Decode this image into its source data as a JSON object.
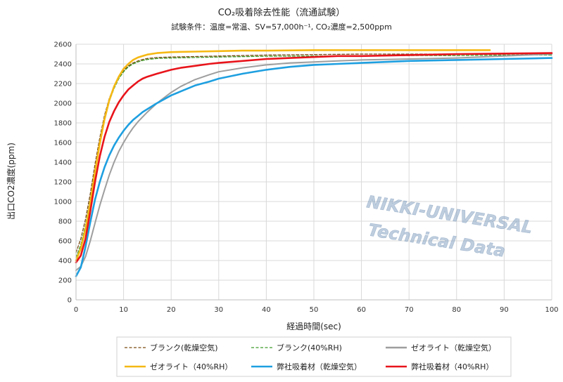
{
  "chart_data": {
    "type": "line",
    "title": "CO₂吸着除去性能（流通試験）",
    "subtitle": "試験条件：温度=常温、SV=57,000h⁻¹, CO₂濃度=2,500ppm",
    "xlabel": "経過時間(sec)",
    "ylabel": "出口CO2濃度(ppm)",
    "xlim": [
      0,
      100
    ],
    "ylim": [
      0,
      2600
    ],
    "x_ticks": [
      "0",
      "10",
      "20",
      "30",
      "40",
      "50",
      "60",
      "70",
      "80",
      "90",
      "100"
    ],
    "y_ticks": [
      "0",
      "200",
      "400",
      "600",
      "800",
      "1000",
      "1200",
      "1400",
      "1600",
      "1800",
      "2000",
      "2200",
      "2400",
      "2600"
    ],
    "grid": true,
    "legend_position": "bottom",
    "watermark": [
      "NIKKI-UNIVERSAL",
      "Technical Data"
    ],
    "series": [
      {
        "name": "ブランク(乾燥空気)",
        "color": "#7a4a12",
        "style": "dashed",
        "x": [
          0,
          1,
          2,
          3,
          4,
          5,
          6,
          7,
          8,
          9,
          10,
          11,
          12,
          13,
          14,
          15,
          17,
          20,
          25,
          30,
          40,
          50,
          60,
          70,
          80,
          90,
          100
        ],
        "y": [
          480,
          620,
          820,
          1080,
          1380,
          1650,
          1880,
          2050,
          2170,
          2260,
          2330,
          2380,
          2410,
          2430,
          2445,
          2455,
          2465,
          2470,
          2475,
          2480,
          2490,
          2495,
          2500,
          2500,
          2500,
          2500,
          2500
        ]
      },
      {
        "name": "ブランク(40%RH)",
        "color": "#3f9a2a",
        "style": "dashed",
        "x": [
          0,
          1,
          2,
          3,
          4,
          5,
          6,
          7,
          8,
          9,
          10,
          11,
          12,
          13,
          14,
          15,
          17,
          20,
          25,
          30,
          40,
          50,
          60,
          70,
          80,
          90,
          100
        ],
        "y": [
          430,
          560,
          760,
          1020,
          1320,
          1600,
          1840,
          2020,
          2150,
          2250,
          2320,
          2370,
          2400,
          2420,
          2435,
          2445,
          2455,
          2460,
          2465,
          2470,
          2478,
          2480,
          2480,
          2485,
          2485,
          2490,
          2490
        ]
      },
      {
        "name": "ゼオライト（乾燥空気）",
        "color": "#9e9e9e",
        "style": "solid",
        "x": [
          0,
          1,
          2,
          3,
          4,
          5,
          6,
          7,
          8,
          9,
          10,
          11,
          12,
          13,
          14,
          15,
          17,
          20,
          22,
          25,
          28,
          30,
          35,
          40,
          45,
          50,
          55,
          60,
          70,
          80,
          90,
          100
        ],
        "y": [
          300,
          340,
          440,
          600,
          780,
          960,
          1120,
          1270,
          1400,
          1510,
          1600,
          1680,
          1750,
          1810,
          1860,
          1910,
          2000,
          2110,
          2170,
          2240,
          2290,
          2320,
          2360,
          2390,
          2410,
          2420,
          2430,
          2440,
          2450,
          2460,
          2480,
          2500
        ]
      },
      {
        "name": "ゼオライト（40%RH）",
        "color": "#f5b814",
        "style": "solid",
        "x": [
          0,
          1,
          2,
          3,
          4,
          5,
          6,
          7,
          8,
          9,
          10,
          11,
          12,
          13,
          14,
          15,
          17,
          20,
          25,
          30,
          35,
          40,
          50,
          60,
          70,
          80,
          87
        ],
        "y": [
          400,
          520,
          720,
          990,
          1300,
          1590,
          1840,
          2030,
          2170,
          2270,
          2350,
          2400,
          2440,
          2465,
          2480,
          2495,
          2510,
          2520,
          2525,
          2530,
          2535,
          2535,
          2540,
          2540,
          2540,
          2540,
          2540
        ]
      },
      {
        "name": "弊社吸着材（乾燥空気）",
        "color": "#1e9fe0",
        "style": "solid",
        "x": [
          0,
          1,
          2,
          3,
          4,
          5,
          6,
          7,
          8,
          9,
          10,
          11,
          12,
          13,
          14,
          15,
          17,
          20,
          22,
          25,
          28,
          30,
          35,
          40,
          45,
          50,
          55,
          60,
          70,
          80,
          90,
          100
        ],
        "y": [
          240,
          330,
          540,
          790,
          1020,
          1200,
          1350,
          1470,
          1570,
          1650,
          1720,
          1780,
          1830,
          1870,
          1910,
          1940,
          2000,
          2080,
          2120,
          2180,
          2220,
          2250,
          2300,
          2340,
          2370,
          2390,
          2400,
          2410,
          2430,
          2440,
          2450,
          2460
        ]
      },
      {
        "name": "弊社吸着材（40%RH）",
        "color": "#e8141b",
        "style": "solid",
        "x": [
          0,
          1,
          2,
          3,
          4,
          5,
          6,
          7,
          8,
          9,
          10,
          11,
          12,
          13,
          14,
          15,
          17,
          20,
          22,
          25,
          28,
          30,
          35,
          40,
          45,
          50,
          55,
          60,
          70,
          80,
          90,
          100
        ],
        "y": [
          380,
          450,
          620,
          900,
          1200,
          1460,
          1660,
          1810,
          1920,
          2010,
          2080,
          2140,
          2180,
          2220,
          2250,
          2270,
          2300,
          2340,
          2360,
          2380,
          2400,
          2410,
          2430,
          2450,
          2460,
          2470,
          2480,
          2480,
          2490,
          2500,
          2505,
          2510
        ]
      }
    ]
  }
}
